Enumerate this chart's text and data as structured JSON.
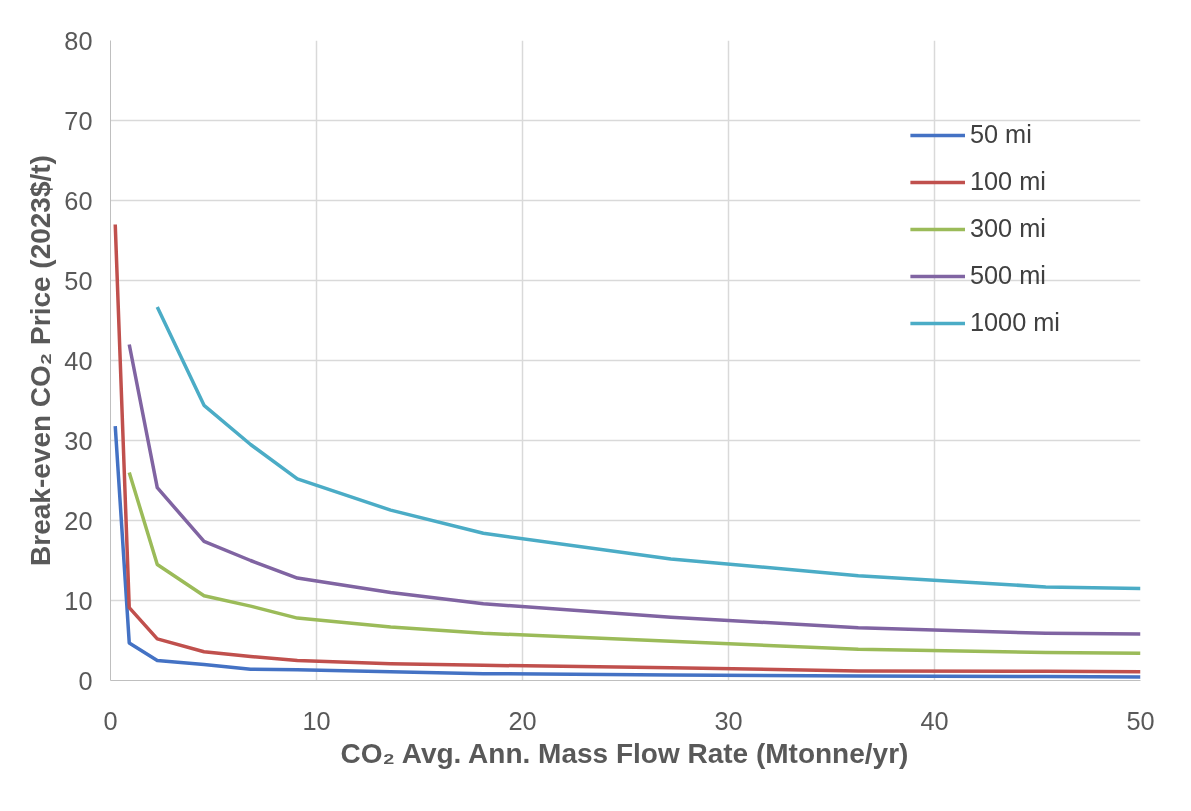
{
  "chart_data": {
    "type": "line",
    "xlabel": "CO₂ Avg. Ann. Mass Flow Rate (Mtonne/yr)",
    "ylabel": "Break-even CO₂ Price (2023$/t)",
    "x": [
      0.23,
      0.91,
      2.27,
      4.54,
      6.8,
      9.07,
      13.6,
      18.1,
      27.2,
      36.3,
      45.4,
      50
    ],
    "series": [
      {
        "name": "50 mi",
        "color": "#4472c4",
        "values": [
          31.8,
          4.7,
          2.5,
          2.0,
          1.4,
          1.35,
          1.1,
          0.85,
          0.7,
          0.55,
          0.5,
          0.45
        ]
      },
      {
        "name": "100 mi",
        "color": "#c0504d",
        "values": [
          57,
          9.1,
          5.2,
          3.6,
          3.0,
          2.5,
          2.1,
          1.9,
          1.6,
          1.2,
          1.15,
          1.1
        ]
      },
      {
        "name": "300 mi",
        "color": "#9bbb59",
        "values": [
          null,
          26,
          14.5,
          10.6,
          9.3,
          7.8,
          6.7,
          5.9,
          4.9,
          3.9,
          3.5,
          3.4
        ]
      },
      {
        "name": "500 mi",
        "color": "#8064a2",
        "values": [
          null,
          42,
          24.1,
          17.4,
          15,
          12.8,
          11,
          9.6,
          7.9,
          6.6,
          5.9,
          5.8
        ]
      },
      {
        "name": "1000 mi",
        "color": "#4bacc6",
        "values": [
          null,
          null,
          46.7,
          34.4,
          29.5,
          25.2,
          21.3,
          18.4,
          15.2,
          13.1,
          11.7,
          11.5
        ]
      }
    ],
    "xlim": [
      0,
      50
    ],
    "xticks": [
      0,
      10,
      20,
      30,
      40,
      50
    ],
    "ylim": [
      0,
      80
    ],
    "yticks": [
      0,
      10,
      20,
      30,
      40,
      50,
      60,
      70,
      80
    ],
    "grid": true,
    "legend": "top right",
    "marker": "none",
    "line_style": "solid"
  }
}
